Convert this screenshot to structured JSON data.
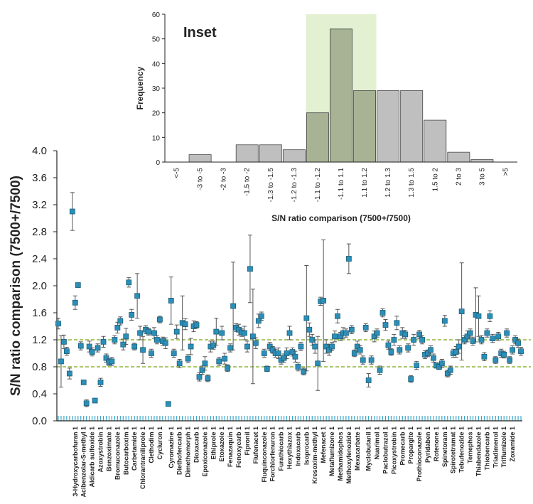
{
  "chart_data": [
    {
      "type": "scatter",
      "y_label": "S/N ratio comparison (7500+/7500)",
      "ylim": [
        0,
        4.0
      ],
      "yticks": [
        {
          "value": 0,
          "label": "0.0"
        },
        {
          "value": 0.4,
          "label": "0.4"
        },
        {
          "value": 0.8,
          "label": "0.8"
        },
        {
          "value": 1.2,
          "label": "1.2"
        },
        {
          "value": 1.6,
          "label": "1.6"
        },
        {
          "value": 2.0,
          "label": "2.0"
        },
        {
          "value": 2.4,
          "label": "2.4"
        },
        {
          "value": 2.8,
          "label": "2.8"
        },
        {
          "value": 3.2,
          "label": "3.2"
        },
        {
          "value": 3.6,
          "label": "3.6"
        },
        {
          "value": 4.0,
          "label": "4.0"
        }
      ],
      "hlines": [
        0.8,
        1.2
      ],
      "hline_color": "#8db33a",
      "color": "#2b8fb8",
      "error_color": "#555555",
      "categories": [
        null,
        null,
        null,
        null,
        null,
        null,
        "3-Hydroxycarbofuran 1",
        null,
        null,
        "Acibenzolar-S-methyl 1",
        null,
        null,
        "Aldicarb sulfoxide 1",
        null,
        null,
        "Azoxystrobin 1",
        null,
        null,
        "Benzoximate 1",
        null,
        null,
        "Bromuconazole 1",
        null,
        null,
        "Butocarboxim 1",
        null,
        null,
        "Carbetamide 1",
        null,
        null,
        "Chlorantraniliprole 1",
        null,
        null,
        "Clethodim 1",
        null,
        null,
        "Cycluron 1",
        null,
        null,
        null,
        "Cyromazine 1",
        null,
        null,
        "Diethofencarb 1",
        null,
        null,
        "Dimethomorph 1",
        null,
        null,
        "Dioxacarb 1",
        null,
        null,
        "Epoxiconazole 1",
        null,
        null,
        "Ethiprole 1",
        null,
        null,
        "Etoxazole 1",
        null,
        null,
        "Fenazaquin 1",
        null,
        null,
        "Fenoxycarb 1",
        null,
        null,
        "Fipronil 1",
        null,
        null,
        "Flufenacet 1",
        null,
        null,
        "Fluquinconazole 1",
        null,
        null,
        "Forchlorfenuron 1",
        null,
        null,
        "Furathiocarb 1",
        null,
        null,
        "Hexythiazox 1",
        null,
        null,
        "Indoxacarb 1",
        null,
        null,
        "Isoprocarb 1",
        null,
        null,
        "Kresoxim-methyl 1",
        null,
        null,
        "Mefenacet 1",
        null,
        null,
        "Metaflumizone 1",
        null,
        null,
        "Methamidophos 1",
        null,
        null,
        "Methoxyfenozide 1",
        null,
        null,
        "Mexacarbate 1",
        null,
        null,
        null,
        "Myclobutanil 1",
        null,
        null,
        "Nuarimol 1",
        null,
        null,
        "Paclobutrazol 1",
        null,
        null,
        "Picoxystrobin 1",
        null,
        null,
        "Promecarb 1",
        null,
        null,
        "Propargite 1",
        null,
        null,
        "Prothioconazole 1",
        null,
        null,
        "Pyridaben 1",
        null,
        null,
        "Rotenone 1",
        null,
        null,
        "Spinetoram 1",
        null,
        null,
        "Spirotetramat 1",
        null,
        null,
        "Tebufenozide 1",
        null,
        null,
        "Temephos 1",
        null,
        null,
        "Thiabendazole 1",
        null,
        null,
        "Thiobencarb 1",
        null,
        null,
        "Triadimenol 1",
        null,
        null,
        "Triflumizole 1",
        null,
        null,
        "Zoxamide 1",
        null,
        null,
        null
      ],
      "values": [
        1.44,
        0.88,
        1.17,
        1.03,
        0.7,
        3.1,
        1.75,
        2.01,
        1.11,
        0.57,
        0.26,
        1.1,
        1.02,
        0.3,
        1.08,
        0.57,
        1.17,
        0.93,
        0.87,
        0.88,
        1.2,
        1.38,
        1.48,
        1.13,
        1.25,
        2.05,
        1.57,
        1.1,
        1.85,
        1.3,
        1.05,
        1.35,
        1.32,
        1.0,
        1.3,
        1.2,
        1.5,
        1.18,
        1.15,
        0.25,
        1.78,
        1.0,
        1.32,
        0.85,
        1.45,
        1.43,
        0.92,
        1.1,
        1.4,
        1.42,
        0.65,
        0.75,
        0.85,
        0.63,
        1.1,
        1.12,
        1.32,
        0.88,
        1.3,
        0.92,
        0.78,
        1.08,
        1.7,
        1.38,
        1.35,
        1.31,
        1.3,
        1.1,
        2.25,
        1.25,
        1.15,
        1.48,
        1.55,
        1.0,
        0.77,
        1.1,
        1.05,
        1.0,
        1.0,
        0.9,
        0.93,
        1.0,
        1.3,
        1.02,
        0.95,
        0.8,
        1.1,
        0.73,
        1.52,
        1.35,
        1.2,
        1.1,
        0.85,
        1.77,
        1.78,
        1.1,
        1.05,
        1.1,
        1.25,
        1.55,
        1.25,
        1.3,
        1.3,
        2.4,
        1.35,
        1.0,
        1.1,
        1.05,
        0.9,
        1.38,
        0.6,
        0.9,
        1.25,
        1.3,
        0.75,
        1.6,
        1.42,
        1.12,
        1.02,
        1.2,
        1.45,
        1.05,
        1.3,
        1.28,
        1.08,
        0.62,
        1.2,
        0.82,
        1.28,
        1.2,
        0.98,
        1.0,
        1.05,
        0.93,
        0.82,
        0.8,
        0.85,
        1.48,
        0.7,
        0.75,
        1.0,
        1.02,
        1.1,
        1.62,
        1.2,
        1.25,
        1.3,
        1.18,
        1.57,
        1.55,
        1.2,
        0.95,
        1.3,
        1.55,
        1.22,
        0.9,
        1.25,
        1.0,
        0.98,
        1.3,
        0.9,
        1.05,
        1.2,
        1.15,
        1.03
      ],
      "errors": [
        0.08,
        0.38,
        0.1,
        0.06,
        0.08,
        0.28,
        0.1,
        0.02,
        0.06,
        0.02,
        0.05,
        0.08,
        0.06,
        0.02,
        0.06,
        0.06,
        0.08,
        0.06,
        0.05,
        0.06,
        0.06,
        0.08,
        0.06,
        0.08,
        0.12,
        0.07,
        0.08,
        0.05,
        0.33,
        0.1,
        0.2,
        0.06,
        0.05,
        0.06,
        0.08,
        0.06,
        0.05,
        0.06,
        0.08,
        0.02,
        0.35,
        0.06,
        0.1,
        0.06,
        0.4,
        0.08,
        0.06,
        0.12,
        0.08,
        0.05,
        0.06,
        0.06,
        0.1,
        0.05,
        0.08,
        0.06,
        0.2,
        0.06,
        0.1,
        0.08,
        0.05,
        0.06,
        0.65,
        0.06,
        0.08,
        0.06,
        0.1,
        0.08,
        0.5,
        0.7,
        0.08,
        0.1,
        0.06,
        0.06,
        0.04,
        0.06,
        0.05,
        0.06,
        0.08,
        0.06,
        0.06,
        0.08,
        0.1,
        0.06,
        0.08,
        0.06,
        0.06,
        0.05,
        0.78,
        0.1,
        0.08,
        0.1,
        0.4,
        0.06,
        0.9,
        0.1,
        0.08,
        0.06,
        0.08,
        0.1,
        0.06,
        0.08,
        0.06,
        0.22,
        0.06,
        0.05,
        0.08,
        0.06,
        0.06,
        0.06,
        0.1,
        0.06,
        0.08,
        0.06,
        0.06,
        0.06,
        0.08,
        0.06,
        0.05,
        0.08,
        0.1,
        0.06,
        0.08,
        0.06,
        0.06,
        0.05,
        0.08,
        0.06,
        0.06,
        0.06,
        0.06,
        0.05,
        0.06,
        0.06,
        0.04,
        0.04,
        0.06,
        0.08,
        0.05,
        0.06,
        0.06,
        0.08,
        0.1,
        0.72,
        0.06,
        0.08,
        0.06,
        0.06,
        0.4,
        0.3,
        0.06,
        0.06,
        0.06,
        0.08,
        0.06,
        0.05,
        0.06,
        0.06,
        0.05,
        0.06,
        0.05,
        0.06,
        0.06,
        0.06,
        0.06
      ]
    },
    {
      "type": "bar",
      "annotation": "Inset",
      "x_label": "S/N ratio comparison (7500+/7500)",
      "y_label": "Frequency",
      "categories": [
        "<-5",
        "-3 to -5",
        "-2 to -3",
        "-1.5 to -2",
        "-1.3 to -1.5",
        "-1.2 to -1.3",
        "-1.1 to -1.2",
        "-1.1 to 1.1",
        "1.1 to 1.2",
        "1.2 to 1.3",
        "1.3 to 1.5",
        "1.5 to 2",
        "2 to 3",
        "3 to 5",
        ">5"
      ],
      "values": [
        0,
        3,
        0,
        7,
        7,
        5,
        20,
        54,
        29,
        29,
        29,
        17,
        4,
        1,
        0
      ],
      "color": "#bfbfbf",
      "highlight": {
        "from": "-1.1 to -1.2",
        "to": "1.1 to 1.2",
        "color": "#e3f0d2",
        "bar_color": "#a7b394"
      },
      "ylim": [
        0,
        60
      ],
      "yticks": [
        0,
        10,
        20,
        30,
        40,
        50,
        60
      ]
    }
  ]
}
